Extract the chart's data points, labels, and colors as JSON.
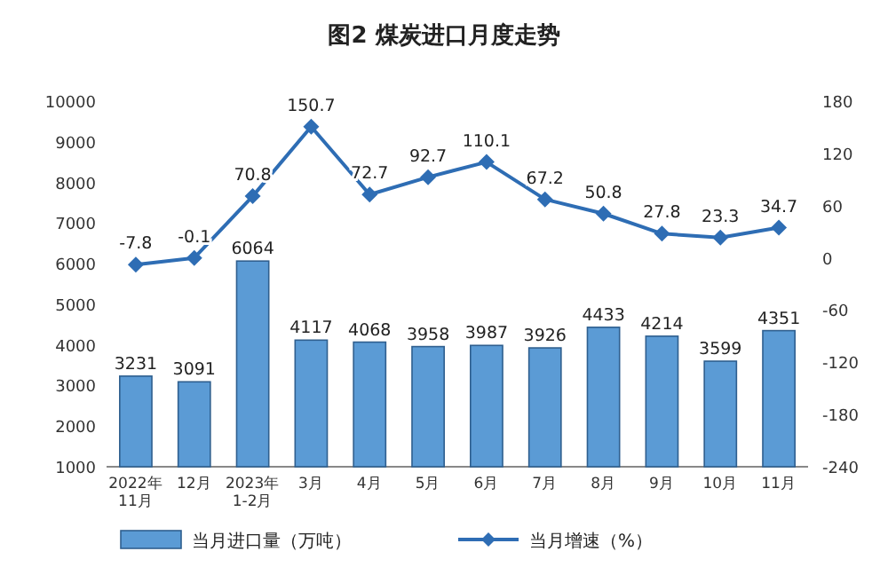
{
  "chart_data": {
    "type": "bar",
    "title": "图2  煤炭进口月度走势",
    "categories": [
      "2022年\n11月",
      "12月",
      "2023年\n1-2月",
      "3月",
      "4月",
      "5月",
      "6月",
      "7月",
      "8月",
      "9月",
      "10月",
      "11月"
    ],
    "series": [
      {
        "name": "当月进口量（万吨）",
        "color": "#5b9bd5",
        "values": [
          3231,
          3091,
          6064,
          4117,
          4068,
          3958,
          3987,
          3926,
          4433,
          4214,
          3599,
          4351
        ]
      },
      {
        "name": "当月增速（%）",
        "type": "line",
        "axis": "y2",
        "color": "#2e6db4",
        "marker": "diamond",
        "values": [
          -7.8,
          -0.1,
          70.8,
          150.7,
          72.7,
          92.7,
          110.1,
          67.2,
          50.8,
          27.8,
          23.3,
          34.7
        ]
      }
    ],
    "ylim": [
      1000,
      10000
    ],
    "yticks": [
      1000,
      2000,
      3000,
      4000,
      5000,
      6000,
      7000,
      8000,
      9000,
      10000
    ],
    "y2lim": [
      -240,
      180
    ],
    "y2ticks": [
      -240,
      -180,
      -120,
      -60,
      0,
      60,
      120,
      180
    ],
    "data_labels": true,
    "legend": "bottom"
  }
}
